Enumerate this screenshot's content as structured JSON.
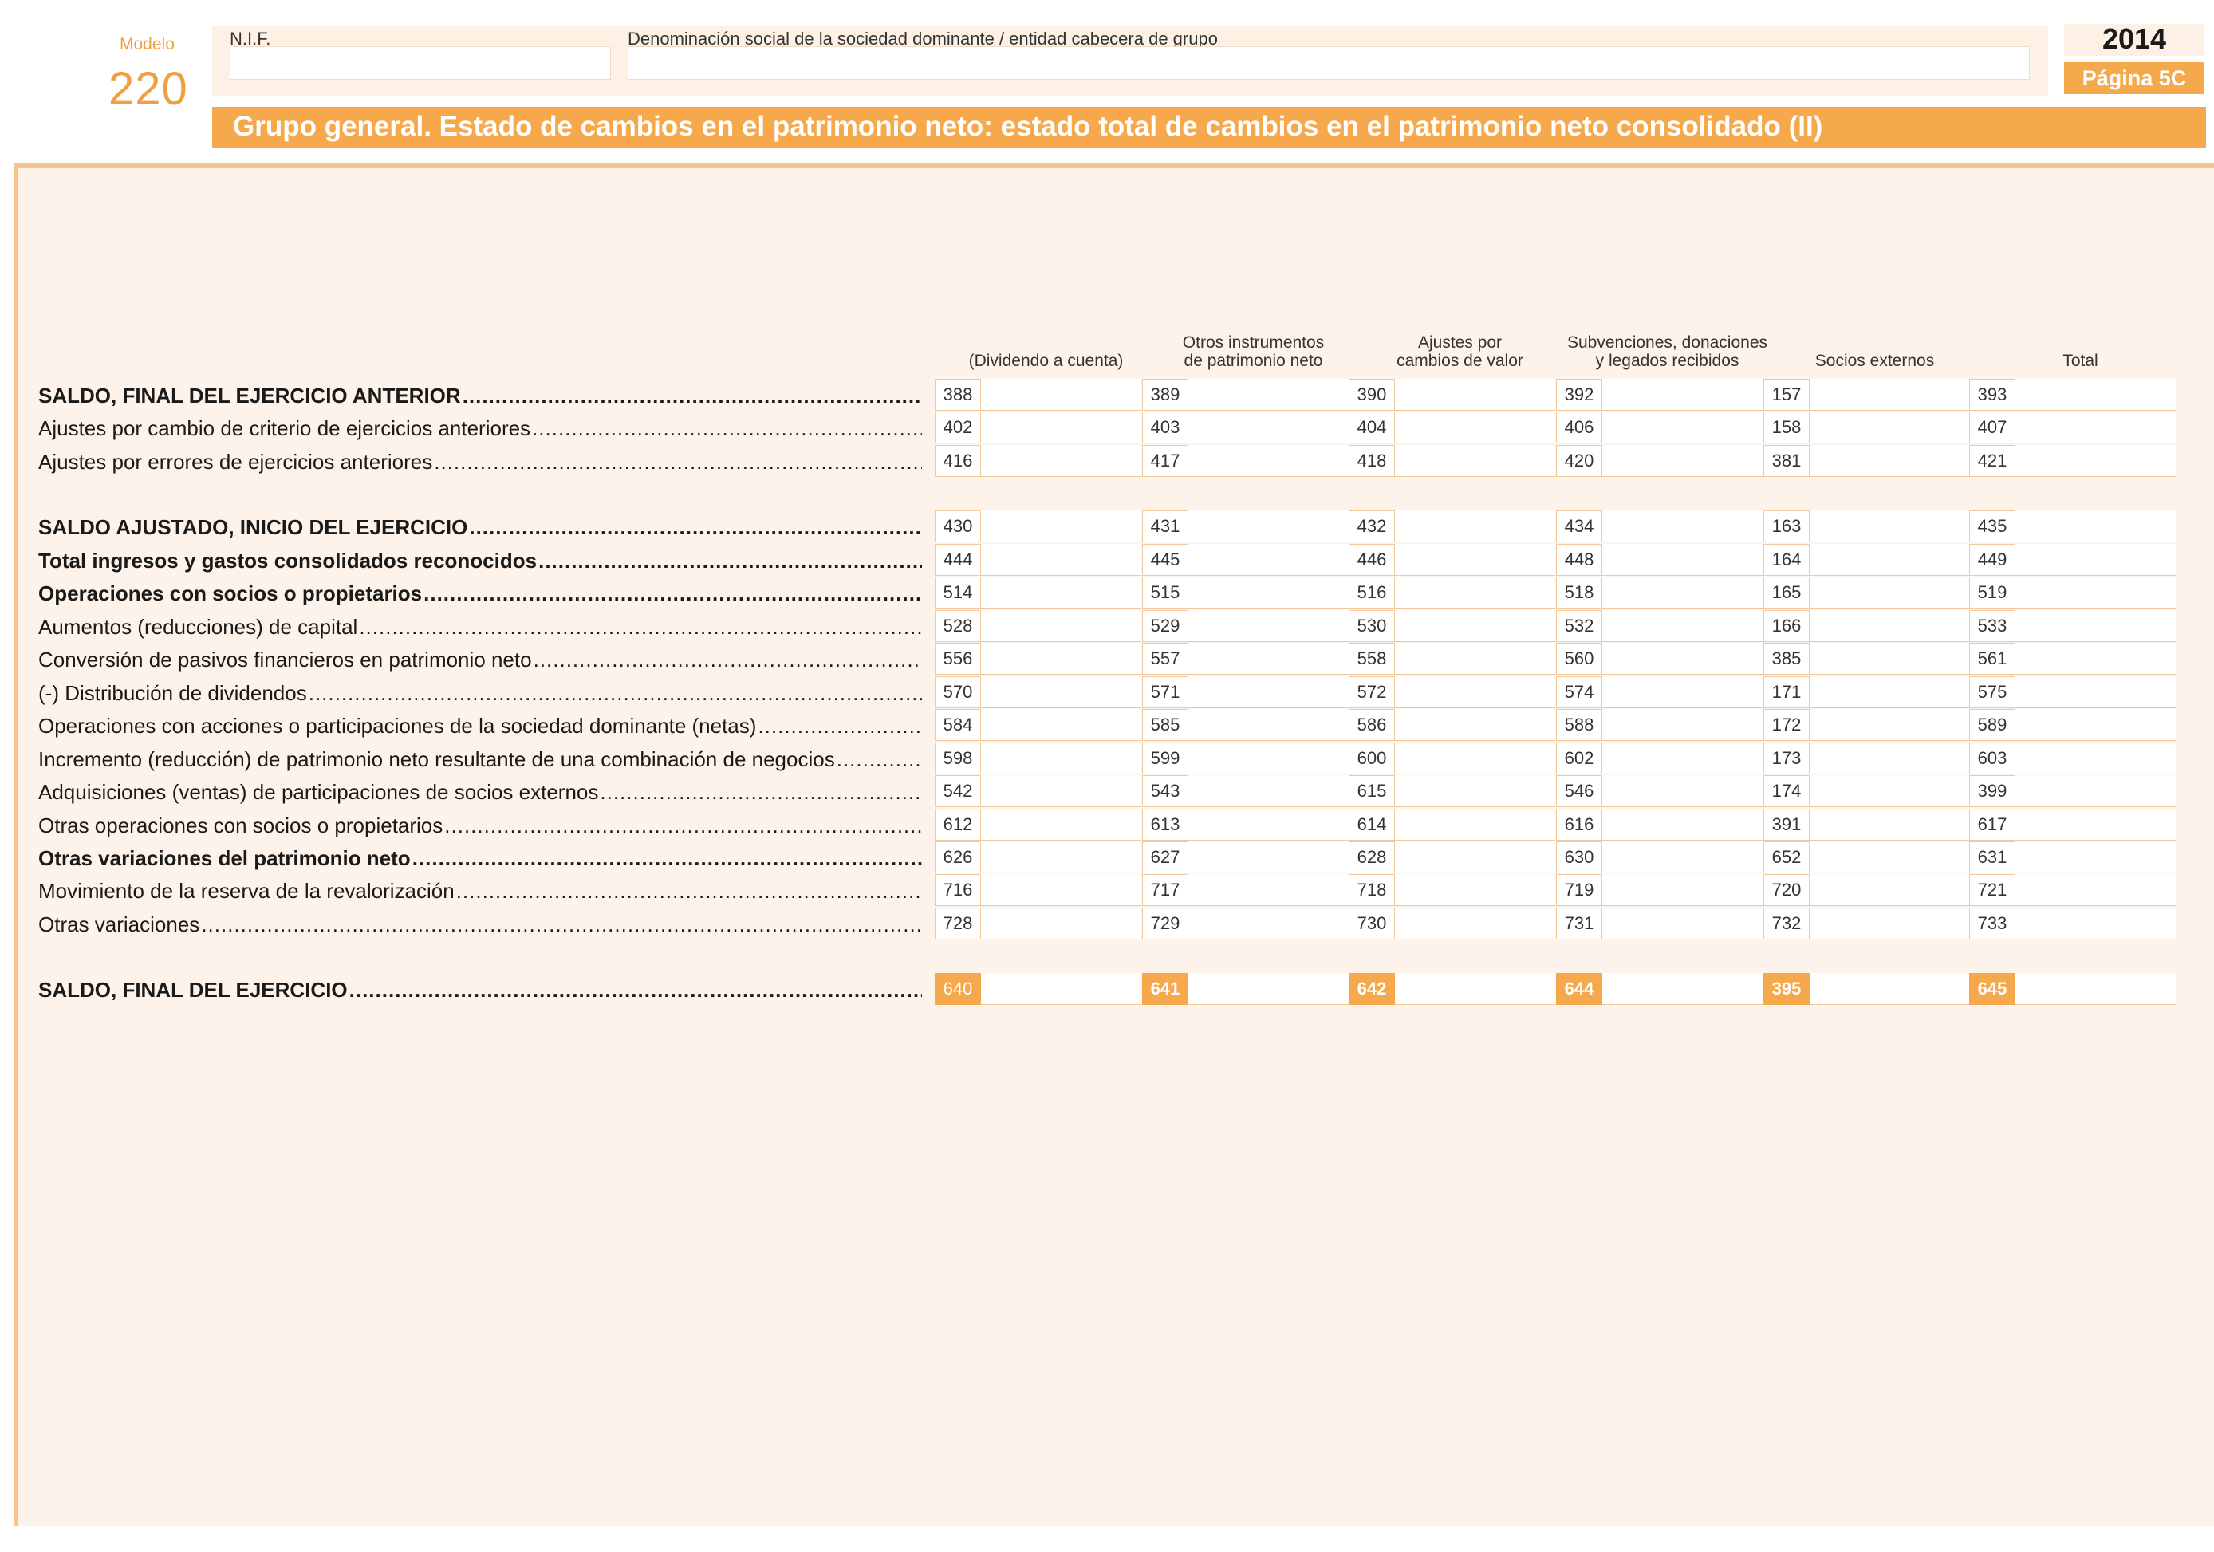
{
  "modelo": {
    "label": "Modelo",
    "number": "220"
  },
  "header": {
    "nif_label": "N.I.F.",
    "denominacion_label": "Denominación social de la sociedad dominante / entidad cabecera de grupo",
    "nif_value": "",
    "denominacion_value": "",
    "year": "2014",
    "page": "Página 5C"
  },
  "title": "Grupo general. Estado de cambios en el patrimonio neto: estado total de cambios en el patrimonio neto consolidado (II)",
  "columns": [
    [
      "",
      "(Dividendo a cuenta)"
    ],
    [
      "Otros instrumentos",
      "de patrimonio neto"
    ],
    [
      "Ajustes por",
      "cambios de valor"
    ],
    [
      "Subvenciones, donaciones",
      "y legados recibidos"
    ],
    [
      "",
      "Socios externos"
    ],
    [
      "",
      "Total"
    ]
  ],
  "rows": [
    {
      "label": "SALDO, FINAL DEL EJERCICIO ANTERIOR",
      "bold": true,
      "codes": [
        "388",
        "389",
        "390",
        "392",
        "157",
        "393"
      ]
    },
    {
      "label": "Ajustes por cambio de criterio de ejercicios anteriores",
      "bold": false,
      "codes": [
        "402",
        "403",
        "404",
        "406",
        "158",
        "407"
      ]
    },
    {
      "label": "Ajustes por errores de ejercicios anteriores",
      "bold": false,
      "codes": [
        "416",
        "417",
        "418",
        "420",
        "381",
        "421"
      ]
    },
    {
      "label": "SALDO AJUSTADO, INICIO DEL EJERCICIO",
      "bold": true,
      "codes": [
        "430",
        "431",
        "432",
        "434",
        "163",
        "435"
      ]
    },
    {
      "label": "Total ingresos y gastos consolidados reconocidos",
      "bold": true,
      "codes": [
        "444",
        "445",
        "446",
        "448",
        "164",
        "449"
      ]
    },
    {
      "label": "Operaciones con socios o propietarios",
      "bold": true,
      "codes": [
        "514",
        "515",
        "516",
        "518",
        "165",
        "519"
      ]
    },
    {
      "label": "Aumentos (reducciones) de capital",
      "bold": false,
      "codes": [
        "528",
        "529",
        "530",
        "532",
        "166",
        "533"
      ]
    },
    {
      "label": "Conversión de pasivos financieros en patrimonio neto",
      "bold": false,
      "codes": [
        "556",
        "557",
        "558",
        "560",
        "385",
        "561"
      ]
    },
    {
      "label": "(-) Distribución de dividendos",
      "bold": false,
      "codes": [
        "570",
        "571",
        "572",
        "574",
        "171",
        "575"
      ]
    },
    {
      "label": "Operaciones con acciones o participaciones de la sociedad dominante (netas)",
      "bold": false,
      "codes": [
        "584",
        "585",
        "586",
        "588",
        "172",
        "589"
      ]
    },
    {
      "label": "Incremento (reducción) de patrimonio neto resultante de una combinación de negocios",
      "bold": false,
      "codes": [
        "598",
        "599",
        "600",
        "602",
        "173",
        "603"
      ]
    },
    {
      "label": "Adquisiciones (ventas) de participaciones de socios externos",
      "bold": false,
      "codes": [
        "542",
        "543",
        "615",
        "546",
        "174",
        "399"
      ]
    },
    {
      "label": "Otras operaciones con socios o propietarios",
      "bold": false,
      "codes": [
        "612",
        "613",
        "614",
        "616",
        "391",
        "617"
      ]
    },
    {
      "label": "Otras variaciones del patrimonio neto",
      "bold": true,
      "codes": [
        "626",
        "627",
        "628",
        "630",
        "652",
        "631"
      ]
    },
    {
      "label": "Movimiento de la reserva de la revalorización",
      "bold": false,
      "codes": [
        "716",
        "717",
        "718",
        "719",
        "720",
        "721"
      ]
    },
    {
      "label": "Otras variaciones",
      "bold": false,
      "codes": [
        "728",
        "729",
        "730",
        "731",
        "732",
        "733"
      ]
    },
    {
      "label": "SALDO, FINAL DEL EJERCICIO",
      "bold": true,
      "codes": [
        "640",
        "641",
        "642",
        "644",
        "395",
        "645"
      ]
    }
  ],
  "colors": {
    "accent": "#f5a94c",
    "panel": "#fdf3ea",
    "border": "#f3c89e"
  }
}
